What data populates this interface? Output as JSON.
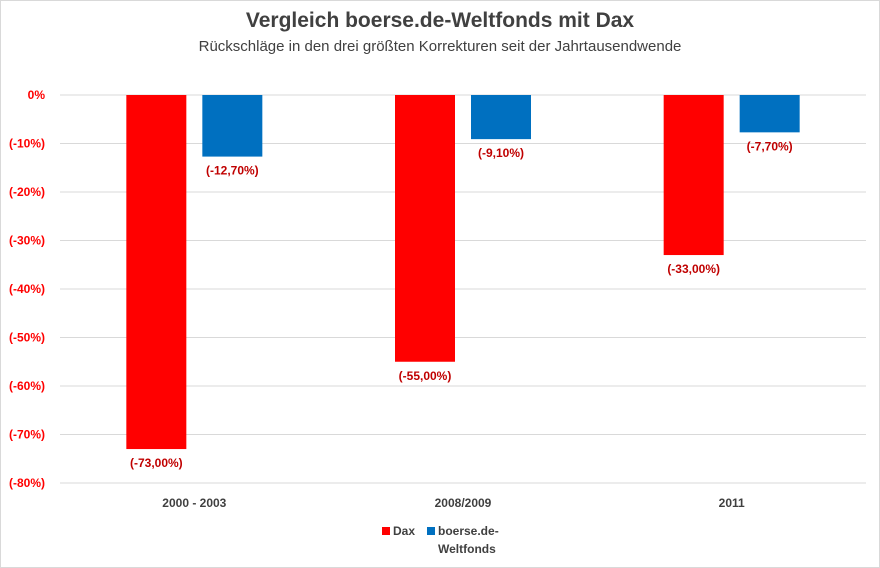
{
  "title": "Vergleich boerse.de-Weltfonds mit Dax",
  "subtitle": "Rückschläge in den drei größten Korrekturen seit der Jahrtausendwende",
  "colors": {
    "dax": "#ff0000",
    "fonds": "#0070c0",
    "label": "#c00000",
    "grid": "#d9d9d9"
  },
  "chart_data": {
    "type": "bar",
    "title": "Vergleich boerse.de-Weltfonds mit Dax",
    "subtitle": "Rückschläge in den drei größten Korrekturen seit der Jahrtausendwende",
    "categories": [
      "2000 - 2003",
      "2008/2009",
      "2011"
    ],
    "series": [
      {
        "name": "Dax",
        "values": [
          -73.0,
          -55.0,
          -33.0
        ],
        "labels": [
          "(-73,00%)",
          "(-55,00%)",
          "(-33,00%)"
        ]
      },
      {
        "name": "boerse.de-Weltfonds",
        "values": [
          -12.7,
          -9.1,
          -7.7
        ],
        "labels": [
          "(-12,70%)",
          "(-9,10%)",
          "(-7,70%)"
        ]
      }
    ],
    "yticks": [
      0,
      -10,
      -20,
      -30,
      -40,
      -50,
      -60,
      -70,
      -80
    ],
    "ytick_labels": [
      "0%",
      "(-10%)",
      "(-20%)",
      "(-30%)",
      "(-40%)",
      "(-50%)",
      "(-60%)",
      "(-70%)",
      "(-80%)"
    ],
    "ylim": [
      -80,
      0
    ],
    "grid": true,
    "legend_position": "bottom",
    "legend": [
      {
        "label_line1": "Dax",
        "label_line2": ""
      },
      {
        "label_line1": "boerse.de-",
        "label_line2": "Weltfonds"
      }
    ]
  }
}
